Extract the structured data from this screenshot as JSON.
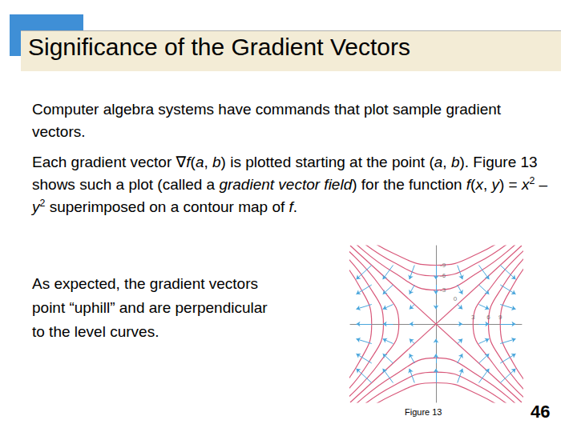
{
  "title": "Significance of the Gradient Vectors",
  "paragraphs": [
    [
      {
        "text": "Computer algebra systems have commands that plot sample gradient vectors."
      }
    ],
    [
      {
        "text": "Each gradient vector ∇"
      },
      {
        "text": "f",
        "italic": true
      },
      {
        "text": "("
      },
      {
        "text": "a",
        "italic": true
      },
      {
        "text": ", "
      },
      {
        "text": "b",
        "italic": true
      },
      {
        "text": ") is plotted starting at the point ("
      },
      {
        "text": "a",
        "italic": true
      },
      {
        "text": ", "
      },
      {
        "text": "b",
        "italic": true
      },
      {
        "text": "). Figure 13 shows such a plot (called a "
      },
      {
        "text": "gradient vector field",
        "italic": true
      },
      {
        "text": ") for the function "
      },
      {
        "text": "f",
        "italic": true
      },
      {
        "text": "("
      },
      {
        "text": "x",
        "italic": true
      },
      {
        "text": ", "
      },
      {
        "text": "y",
        "italic": true
      },
      {
        "text": ") = "
      },
      {
        "text": "x",
        "italic": true
      },
      {
        "text": "2",
        "sup": true
      },
      {
        "text": " – "
      },
      {
        "text": "y",
        "italic": true
      },
      {
        "text": "2",
        "sup": true
      },
      {
        "text": " superimposed on a contour map of "
      },
      {
        "text": "f",
        "italic": true
      },
      {
        "text": "."
      }
    ]
  ],
  "side_text": [
    {
      "text": "As expected, the gradient vectors point “uphill” and are perpendicular to the level curves."
    }
  ],
  "caption": "Figure 13",
  "page_number": "46",
  "chart_data": {
    "type": "quiver",
    "xlim": [
      -4,
      4
    ],
    "ylim": [
      -4,
      4
    ],
    "tick_labels": false,
    "grid": false,
    "contour_color": "#d8587a",
    "vector_color": "#4aa6dc",
    "contours": [
      {
        "level": 9,
        "label": "9",
        "label_at": [
          3,
          0
        ],
        "branches": [
          [
            [
              5,
              -4
            ],
            [
              3.61,
              -2
            ],
            [
              3,
              0
            ],
            [
              3.61,
              2
            ],
            [
              5,
              4
            ]
          ],
          [
            [
              -5,
              -4
            ],
            [
              -3.61,
              -2
            ],
            [
              -3,
              0
            ],
            [
              -3.61,
              2
            ],
            [
              -5,
              4
            ]
          ]
        ]
      },
      {
        "level": 6,
        "label": "6",
        "label_at": [
          2.45,
          0
        ],
        "branches": [
          [
            [
              4.69,
              -4
            ],
            [
              3.16,
              -2
            ],
            [
              2.45,
              0
            ],
            [
              3.16,
              2
            ],
            [
              4.69,
              4
            ]
          ],
          [
            [
              -4.69,
              -4
            ],
            [
              -3.16,
              -2
            ],
            [
              -2.45,
              0
            ],
            [
              -3.16,
              2
            ],
            [
              -4.69,
              4
            ]
          ]
        ]
      },
      {
        "level": 3,
        "label": "3",
        "label_at": [
          1.73,
          0
        ],
        "branches": [
          [
            [
              4.36,
              -4
            ],
            [
              2.65,
              -2
            ],
            [
              1.73,
              0
            ],
            [
              2.65,
              2
            ],
            [
              4.36,
              4
            ]
          ],
          [
            [
              -4.36,
              -4
            ],
            [
              -2.65,
              -2
            ],
            [
              -1.73,
              0
            ],
            [
              -2.65,
              2
            ],
            [
              -4.36,
              4
            ]
          ]
        ]
      },
      {
        "level": 0,
        "label": "0",
        "label_at": [
          0.9,
          0.9
        ],
        "branches": [
          [
            [
              -4,
              -4
            ],
            [
              4,
              4
            ]
          ],
          [
            [
              -4,
              4
            ],
            [
              4,
              -4
            ]
          ]
        ]
      },
      {
        "level": -3,
        "label": "-3",
        "label_at": [
          0,
          1.73
        ],
        "branches": [
          [
            [
              -4,
              4.36
            ],
            [
              -2,
              2.65
            ],
            [
              0,
              1.73
            ],
            [
              2,
              2.65
            ],
            [
              4,
              4.36
            ]
          ],
          [
            [
              -4,
              -4.36
            ],
            [
              -2,
              -2.65
            ],
            [
              0,
              -1.73
            ],
            [
              2,
              -2.65
            ],
            [
              4,
              -4.36
            ]
          ]
        ]
      },
      {
        "level": -6,
        "label": "-6",
        "label_at": [
          0,
          2.45
        ],
        "branches": [
          [
            [
              -4,
              4.69
            ],
            [
              -2,
              3.16
            ],
            [
              0,
              2.45
            ],
            [
              2,
              3.16
            ],
            [
              4,
              4.69
            ]
          ],
          [
            [
              -4,
              -4.69
            ],
            [
              -2,
              -3.16
            ],
            [
              0,
              -2.45
            ],
            [
              2,
              -3.16
            ],
            [
              4,
              -4.69
            ]
          ]
        ]
      },
      {
        "level": -9,
        "label": "-9",
        "label_at": [
          0,
          3
        ],
        "branches": [
          [
            [
              -4,
              5
            ],
            [
              -2,
              3.61
            ],
            [
              0,
              3
            ],
            [
              2,
              3.61
            ],
            [
              4,
              5
            ]
          ],
          [
            [
              -4,
              -5
            ],
            [
              -2,
              -3.61
            ],
            [
              0,
              -3
            ],
            [
              2,
              -3.61
            ],
            [
              4,
              -5
            ]
          ]
        ]
      }
    ],
    "vectors": [
      [
        -3,
        3,
        -6,
        -6
      ],
      [
        -2,
        3,
        -4,
        -6
      ],
      [
        -1,
        3,
        -2,
        -6
      ],
      [
        0,
        3,
        0,
        -6
      ],
      [
        1,
        3,
        2,
        -6
      ],
      [
        2,
        3,
        4,
        -6
      ],
      [
        3,
        3,
        6,
        -6
      ],
      [
        -3,
        2,
        -6,
        -4
      ],
      [
        -2,
        2,
        -4,
        -4
      ],
      [
        -1,
        2,
        -2,
        -4
      ],
      [
        0,
        2,
        0,
        -4
      ],
      [
        1,
        2,
        2,
        -4
      ],
      [
        2,
        2,
        4,
        -4
      ],
      [
        3,
        2,
        6,
        -4
      ],
      [
        -3,
        1,
        -6,
        -2
      ],
      [
        -2,
        1,
        -4,
        -2
      ],
      [
        -1,
        1,
        -2,
        -2
      ],
      [
        0,
        1,
        0,
        -2
      ],
      [
        1,
        1,
        2,
        -2
      ],
      [
        2,
        1,
        4,
        -2
      ],
      [
        3,
        1,
        6,
        -2
      ],
      [
        -3,
        0,
        -6,
        0
      ],
      [
        -2,
        0,
        -4,
        0
      ],
      [
        -1,
        0,
        -2,
        0
      ],
      [
        1,
        0,
        2,
        0
      ],
      [
        2,
        0,
        4,
        0
      ],
      [
        3,
        0,
        6,
        0
      ],
      [
        -3,
        -1,
        -6,
        2
      ],
      [
        -2,
        -1,
        -4,
        2
      ],
      [
        -1,
        -1,
        -2,
        2
      ],
      [
        0,
        -1,
        0,
        2
      ],
      [
        1,
        -1,
        2,
        2
      ],
      [
        2,
        -1,
        4,
        2
      ],
      [
        3,
        -1,
        6,
        2
      ],
      [
        -3,
        -2,
        -6,
        4
      ],
      [
        -2,
        -2,
        -4,
        4
      ],
      [
        -1,
        -2,
        -2,
        4
      ],
      [
        0,
        -2,
        0,
        4
      ],
      [
        1,
        -2,
        2,
        4
      ],
      [
        2,
        -2,
        4,
        4
      ],
      [
        3,
        -2,
        6,
        4
      ],
      [
        -3,
        -3,
        -6,
        6
      ],
      [
        -2,
        -3,
        -4,
        6
      ],
      [
        -1,
        -3,
        -2,
        6
      ],
      [
        0,
        -3,
        0,
        6
      ],
      [
        1,
        -3,
        2,
        6
      ],
      [
        2,
        -3,
        4,
        6
      ],
      [
        3,
        -3,
        6,
        6
      ]
    ]
  }
}
